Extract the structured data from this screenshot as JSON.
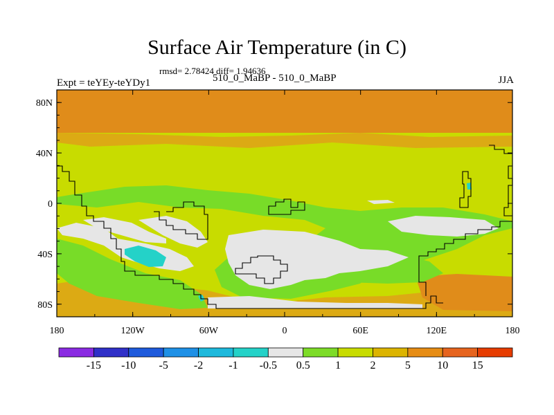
{
  "chart_data": {
    "type": "heatmap",
    "title": "Surface Air Temperature (in C)",
    "stats_text": "rmsd= 2.78424 diff= 1.94636",
    "subtitle": "510_0_MaBP - 510_0_MaBP",
    "experiment_label": "Expt = teYEy-teYDy1",
    "season": "JJA",
    "x_ticks": [
      "180",
      "120W",
      "60W",
      "0",
      "60E",
      "120E",
      "180"
    ],
    "y_ticks": [
      "80N",
      "40N",
      "0",
      "40S",
      "80S"
    ],
    "xlim": [
      -180,
      180
    ],
    "ylim": [
      -90,
      90
    ],
    "colorbar_levels": [
      "-15",
      "-10",
      "-5",
      "-2",
      "-1",
      "-0.5",
      "0.5",
      "1",
      "2",
      "5",
      "10",
      "15"
    ],
    "colorbar_colors": [
      "#8a2be2",
      "#3030c8",
      "#1e5adc",
      "#1e90e6",
      "#1eb9dc",
      "#24d2c8",
      "#e6e6e6",
      "#7ddc28",
      "#c8dc00",
      "#dcb400",
      "#e68c14",
      "#e6641e",
      "#e63c00"
    ]
  },
  "colors": {
    "warm_band": "#e08c1a",
    "light_orange": "#dcaa14",
    "yellow_green": "#c8dc00",
    "green": "#78dc28",
    "near_zero": "#e6e6e6",
    "cyan": "#24d2c8"
  }
}
